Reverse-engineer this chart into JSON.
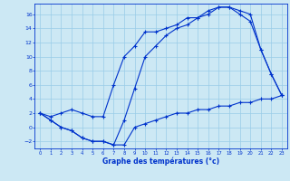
{
  "title": "Graphe des températures (°c)",
  "bg_color": "#cce8f4",
  "grid_color": "#99cce8",
  "line_color": "#0033cc",
  "xlim": [
    -0.5,
    23.5
  ],
  "ylim": [
    -3.0,
    17.5
  ],
  "xticks": [
    0,
    1,
    2,
    3,
    4,
    5,
    6,
    7,
    8,
    9,
    10,
    11,
    12,
    13,
    14,
    15,
    16,
    17,
    18,
    19,
    20,
    21,
    22,
    23
  ],
  "yticks": [
    -2,
    0,
    2,
    4,
    6,
    8,
    10,
    12,
    14,
    16
  ],
  "upper_x": [
    0,
    1,
    2,
    3,
    4,
    5,
    6,
    7,
    8,
    9,
    10,
    11,
    12,
    13,
    14,
    15,
    16,
    17,
    18,
    19,
    20,
    21,
    22,
    23
  ],
  "upper_y": [
    2.0,
    1.5,
    2.0,
    2.5,
    2.0,
    1.5,
    1.5,
    6.0,
    10.0,
    11.5,
    13.5,
    13.5,
    14.0,
    14.5,
    15.5,
    15.5,
    16.5,
    17.0,
    17.0,
    16.5,
    16.0,
    11.0,
    7.5,
    4.5
  ],
  "lower_x": [
    0,
    1,
    2,
    3,
    4,
    5,
    6,
    7,
    8,
    9,
    10,
    11,
    12,
    13,
    14,
    15,
    16,
    17,
    18,
    19,
    20,
    21,
    22,
    23
  ],
  "lower_y": [
    2.0,
    1.0,
    0.0,
    -0.5,
    -1.5,
    -2.0,
    -2.0,
    -2.5,
    -2.5,
    0.0,
    0.5,
    1.0,
    1.5,
    2.0,
    2.0,
    2.5,
    2.5,
    3.0,
    3.0,
    3.5,
    3.5,
    4.0,
    4.0,
    4.5
  ],
  "actual_x": [
    0,
    1,
    2,
    3,
    4,
    5,
    6,
    7,
    8,
    9,
    10,
    11,
    12,
    13,
    14,
    15,
    16,
    17,
    18,
    19,
    20,
    21,
    22,
    23
  ],
  "actual_y": [
    2.0,
    1.0,
    0.0,
    -0.5,
    -1.5,
    -2.0,
    -2.0,
    -2.5,
    1.0,
    5.5,
    10.0,
    11.5,
    13.0,
    14.0,
    14.5,
    15.5,
    16.0,
    17.0,
    17.0,
    16.0,
    15.0,
    11.0,
    7.5,
    4.5
  ]
}
